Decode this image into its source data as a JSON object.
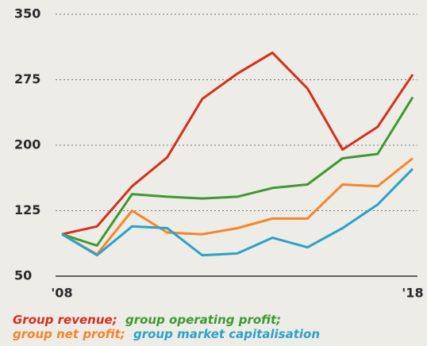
{
  "chart_data": {
    "type": "line",
    "categories": [
      "'08",
      null,
      null,
      null,
      null,
      null,
      null,
      null,
      null,
      null,
      "'18"
    ],
    "series": [
      {
        "name": "Group revenue",
        "color": "#d32f1f",
        "values": [
          98,
          107,
          153,
          186,
          253,
          282,
          306,
          265,
          195,
          221,
          281
        ]
      },
      {
        "name": "group operating profit",
        "color": "#3c9a30",
        "values": [
          98,
          85,
          144,
          141,
          139,
          141,
          151,
          155,
          185,
          190,
          255
        ]
      },
      {
        "name": "group net profit",
        "color": "#f5852b",
        "values": [
          98,
          75,
          125,
          100,
          98,
          105,
          116,
          116,
          155,
          153,
          185
        ]
      },
      {
        "name": "group market capitalisation",
        "color": "#2ba2c8",
        "values": [
          98,
          74,
          107,
          105,
          74,
          76,
          94,
          83,
          105,
          132,
          173
        ]
      }
    ],
    "legend_separator": ";",
    "ylim": [
      50,
      350
    ],
    "yticks": [
      50,
      125,
      200,
      275,
      350
    ],
    "grid": true
  }
}
